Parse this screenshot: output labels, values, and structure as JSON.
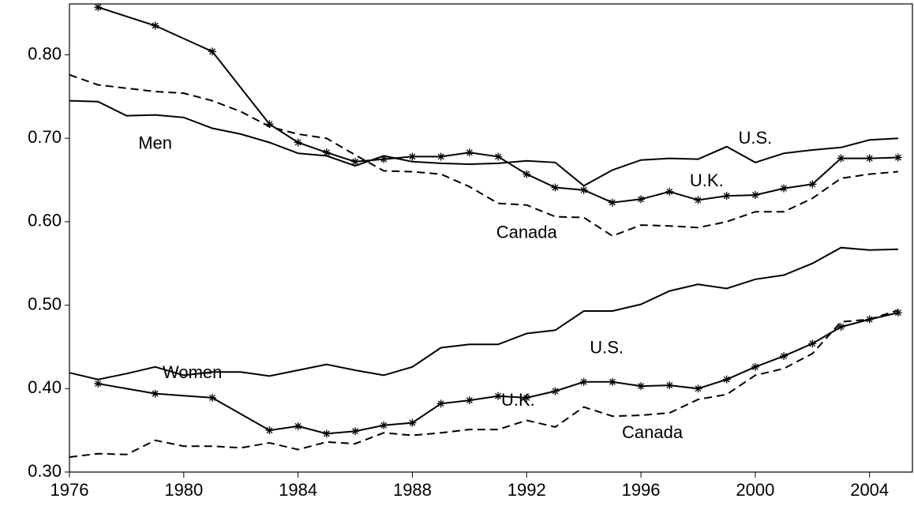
{
  "chart_data": {
    "type": "line",
    "x": [
      1976,
      1977,
      1978,
      1979,
      1980,
      1981,
      1982,
      1983,
      1984,
      1985,
      1986,
      1987,
      1988,
      1989,
      1990,
      1991,
      1992,
      1993,
      1994,
      1995,
      1996,
      1997,
      1998,
      1999,
      2000,
      2001,
      2002,
      2003,
      2004,
      2005
    ],
    "xlim": [
      1976,
      2005.5
    ],
    "xticks": [
      1976,
      1980,
      1984,
      1988,
      1992,
      1996,
      2000,
      2004
    ],
    "ylim": [
      0.3,
      0.861
    ],
    "yticks": [
      {
        "value": 0.3,
        "label": "0.30"
      },
      {
        "value": 0.4,
        "label": "0.40"
      },
      {
        "value": 0.5,
        "label": "0.50"
      },
      {
        "value": 0.6,
        "label": "0.60"
      },
      {
        "value": 0.7,
        "label": "0.70"
      },
      {
        "value": 0.8,
        "label": "0.80"
      }
    ],
    "series": [
      {
        "color": "#000000",
        "dash": false,
        "marker": "none",
        "values": [
          0.745,
          0.744,
          0.727,
          0.728,
          0.725,
          0.712,
          0.705,
          0.695,
          0.682,
          0.679,
          0.667,
          0.679,
          0.672,
          0.67,
          0.669,
          0.67,
          0.673,
          0.671,
          0.643,
          0.662,
          0.674,
          0.676,
          0.675,
          0.69,
          0.671,
          0.682,
          0.686,
          0.689,
          0.698,
          0.7
        ]
      },
      {
        "color": "#000000",
        "dash": true,
        "marker": "none",
        "values": [
          0.776,
          0.764,
          0.76,
          0.756,
          0.754,
          0.745,
          0.732,
          0.714,
          0.705,
          0.7,
          0.68,
          0.661,
          0.66,
          0.657,
          0.642,
          0.622,
          0.62,
          0.606,
          0.605,
          0.583,
          0.596,
          0.595,
          0.593,
          0.6,
          0.612,
          0.612,
          0.628,
          0.652,
          0.657,
          0.66
        ]
      },
      {
        "color": "#000000",
        "dash": false,
        "marker": "star",
        "x": [
          1977,
          1979,
          1981,
          1983,
          1984,
          1985,
          1986,
          1987,
          1988,
          1989,
          1990,
          1991,
          1992,
          1993,
          1994,
          1995,
          1996,
          1997,
          1998,
          1999,
          2000,
          2001,
          2002,
          2003,
          2004,
          2005
        ],
        "values": [
          0.857,
          0.835,
          0.804,
          0.717,
          0.695,
          0.683,
          0.672,
          0.675,
          0.678,
          0.678,
          0.683,
          0.678,
          0.657,
          0.641,
          0.638,
          0.623,
          0.627,
          0.636,
          0.626,
          0.631,
          0.632,
          0.64,
          0.645,
          0.676,
          0.676,
          0.677
        ]
      },
      {
        "color": "#000000",
        "dash": false,
        "marker": "none",
        "values": [
          0.419,
          0.411,
          0.418,
          0.426,
          0.416,
          0.42,
          0.42,
          0.415,
          0.422,
          0.429,
          0.422,
          0.416,
          0.426,
          0.449,
          0.453,
          0.453,
          0.466,
          0.47,
          0.493,
          0.493,
          0.501,
          0.517,
          0.525,
          0.52,
          0.531,
          0.536,
          0.55,
          0.569,
          0.566,
          0.567
        ]
      },
      {
        "color": "#000000",
        "dash": true,
        "marker": "none",
        "values": [
          0.318,
          0.322,
          0.321,
          0.338,
          0.331,
          0.331,
          0.329,
          0.335,
          0.327,
          0.336,
          0.334,
          0.347,
          0.344,
          0.347,
          0.351,
          0.351,
          0.362,
          0.354,
          0.378,
          0.367,
          0.368,
          0.371,
          0.387,
          0.393,
          0.416,
          0.424,
          0.442,
          0.48,
          0.483,
          0.494
        ]
      },
      {
        "color": "#000000",
        "dash": false,
        "marker": "star",
        "x": [
          1977,
          1979,
          1981,
          1983,
          1984,
          1985,
          1986,
          1987,
          1988,
          1989,
          1990,
          1991,
          1992,
          1993,
          1994,
          1995,
          1996,
          1997,
          1998,
          1999,
          2000,
          2001,
          2002,
          2003,
          2004,
          2005
        ],
        "values": [
          0.406,
          0.394,
          0.389,
          0.35,
          0.355,
          0.346,
          0.349,
          0.356,
          0.359,
          0.382,
          0.386,
          0.391,
          0.389,
          0.397,
          0.408,
          0.408,
          0.403,
          0.404,
          0.4,
          0.411,
          0.426,
          0.439,
          0.454,
          0.474,
          0.483,
          0.491
        ]
      }
    ],
    "annotations": [
      {
        "text": "Men",
        "x": 1979.0,
        "y": 0.693
      },
      {
        "text": "U.S.",
        "x": 2000.0,
        "y": 0.699
      },
      {
        "text": "U.K.",
        "x": 1998.3,
        "y": 0.648
      },
      {
        "text": "Canada",
        "x": 1992.0,
        "y": 0.586
      },
      {
        "text": "U.S.",
        "x": 1994.8,
        "y": 0.448
      },
      {
        "text": "Women",
        "x": 1980.3,
        "y": 0.418
      },
      {
        "text": "U.K.",
        "x": 1991.7,
        "y": 0.385
      },
      {
        "text": "Canada",
        "x": 1996.4,
        "y": 0.346
      }
    ]
  }
}
